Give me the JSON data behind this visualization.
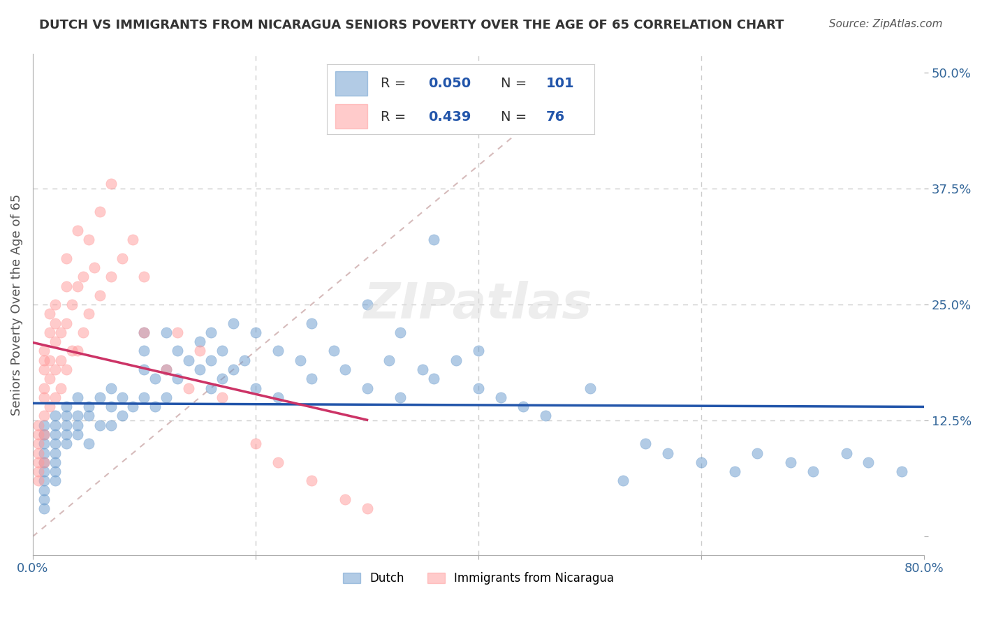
{
  "title": "DUTCH VS IMMIGRANTS FROM NICARAGUA SENIORS POVERTY OVER THE AGE OF 65 CORRELATION CHART",
  "source_text": "Source: ZipAtlas.com",
  "ylabel": "Seniors Poverty Over the Age of 65",
  "xlabel": "",
  "xlim": [
    0.0,
    0.8
  ],
  "ylim": [
    -0.02,
    0.52
  ],
  "xticks": [
    0.0,
    0.2,
    0.4,
    0.6,
    0.8
  ],
  "xticklabels": [
    "0.0%",
    "",
    "",
    "",
    "80.0%"
  ],
  "yticks": [
    0.0,
    0.125,
    0.25,
    0.375,
    0.5
  ],
  "yticklabels": [
    "",
    "12.5%",
    "25.0%",
    "37.5%",
    "50.0%"
  ],
  "watermark": "ZIPatlas",
  "legend_r_dutch": "R = 0.050",
  "legend_n_dutch": "N = 101",
  "legend_r_nica": "R = 0.439",
  "legend_n_nica": "N = 76",
  "dutch_color": "#6699CC",
  "nica_color": "#FF9999",
  "dutch_line_color": "#2255AA",
  "nica_line_color": "#CC3366",
  "ref_line_color": "#CCAAAA",
  "grid_color": "#CCCCCC",
  "title_color": "#333333",
  "source_color": "#555555",
  "axis_label_color": "#336699",
  "dutch_scatter": {
    "x": [
      0.01,
      0.01,
      0.01,
      0.01,
      0.01,
      0.01,
      0.01,
      0.01,
      0.01,
      0.01,
      0.02,
      0.02,
      0.02,
      0.02,
      0.02,
      0.02,
      0.02,
      0.02,
      0.03,
      0.03,
      0.03,
      0.03,
      0.03,
      0.04,
      0.04,
      0.04,
      0.04,
      0.05,
      0.05,
      0.05,
      0.06,
      0.06,
      0.07,
      0.07,
      0.07,
      0.08,
      0.08,
      0.09,
      0.1,
      0.1,
      0.1,
      0.1,
      0.11,
      0.11,
      0.12,
      0.12,
      0.12,
      0.13,
      0.13,
      0.14,
      0.15,
      0.15,
      0.16,
      0.16,
      0.16,
      0.17,
      0.17,
      0.18,
      0.18,
      0.19,
      0.2,
      0.2,
      0.22,
      0.22,
      0.24,
      0.25,
      0.25,
      0.27,
      0.28,
      0.3,
      0.3,
      0.32,
      0.33,
      0.33,
      0.35,
      0.36,
      0.36,
      0.38,
      0.4,
      0.4,
      0.42,
      0.44,
      0.46,
      0.5,
      0.53,
      0.55,
      0.57,
      0.6,
      0.63,
      0.65,
      0.68,
      0.7,
      0.73,
      0.75,
      0.78
    ],
    "y": [
      0.12,
      0.11,
      0.1,
      0.09,
      0.08,
      0.07,
      0.06,
      0.05,
      0.04,
      0.03,
      0.13,
      0.12,
      0.11,
      0.1,
      0.09,
      0.08,
      0.07,
      0.06,
      0.14,
      0.13,
      0.12,
      0.11,
      0.1,
      0.15,
      0.13,
      0.12,
      0.11,
      0.14,
      0.13,
      0.1,
      0.15,
      0.12,
      0.16,
      0.14,
      0.12,
      0.15,
      0.13,
      0.14,
      0.22,
      0.2,
      0.18,
      0.15,
      0.17,
      0.14,
      0.22,
      0.18,
      0.15,
      0.2,
      0.17,
      0.19,
      0.21,
      0.18,
      0.22,
      0.19,
      0.16,
      0.2,
      0.17,
      0.23,
      0.18,
      0.19,
      0.22,
      0.16,
      0.2,
      0.15,
      0.19,
      0.23,
      0.17,
      0.2,
      0.18,
      0.25,
      0.16,
      0.19,
      0.22,
      0.15,
      0.18,
      0.32,
      0.17,
      0.19,
      0.2,
      0.16,
      0.15,
      0.14,
      0.13,
      0.16,
      0.06,
      0.1,
      0.09,
      0.08,
      0.07,
      0.09,
      0.08,
      0.07,
      0.09,
      0.08,
      0.07
    ]
  },
  "nica_scatter": {
    "x": [
      0.005,
      0.005,
      0.005,
      0.005,
      0.005,
      0.005,
      0.005,
      0.01,
      0.01,
      0.01,
      0.01,
      0.01,
      0.01,
      0.01,
      0.01,
      0.015,
      0.015,
      0.015,
      0.015,
      0.015,
      0.02,
      0.02,
      0.02,
      0.02,
      0.02,
      0.025,
      0.025,
      0.025,
      0.03,
      0.03,
      0.03,
      0.03,
      0.035,
      0.035,
      0.04,
      0.04,
      0.04,
      0.045,
      0.045,
      0.05,
      0.05,
      0.055,
      0.06,
      0.06,
      0.07,
      0.07,
      0.08,
      0.09,
      0.1,
      0.1,
      0.12,
      0.13,
      0.14,
      0.15,
      0.17,
      0.2,
      0.22,
      0.25,
      0.28,
      0.3
    ],
    "y": [
      0.12,
      0.11,
      0.1,
      0.09,
      0.08,
      0.07,
      0.06,
      0.2,
      0.19,
      0.18,
      0.16,
      0.15,
      0.13,
      0.11,
      0.08,
      0.24,
      0.22,
      0.19,
      0.17,
      0.14,
      0.25,
      0.23,
      0.21,
      0.18,
      0.15,
      0.22,
      0.19,
      0.16,
      0.3,
      0.27,
      0.23,
      0.18,
      0.25,
      0.2,
      0.33,
      0.27,
      0.2,
      0.28,
      0.22,
      0.32,
      0.24,
      0.29,
      0.35,
      0.26,
      0.38,
      0.28,
      0.3,
      0.32,
      0.28,
      0.22,
      0.18,
      0.22,
      0.16,
      0.2,
      0.15,
      0.1,
      0.08,
      0.06,
      0.04,
      0.03
    ]
  }
}
